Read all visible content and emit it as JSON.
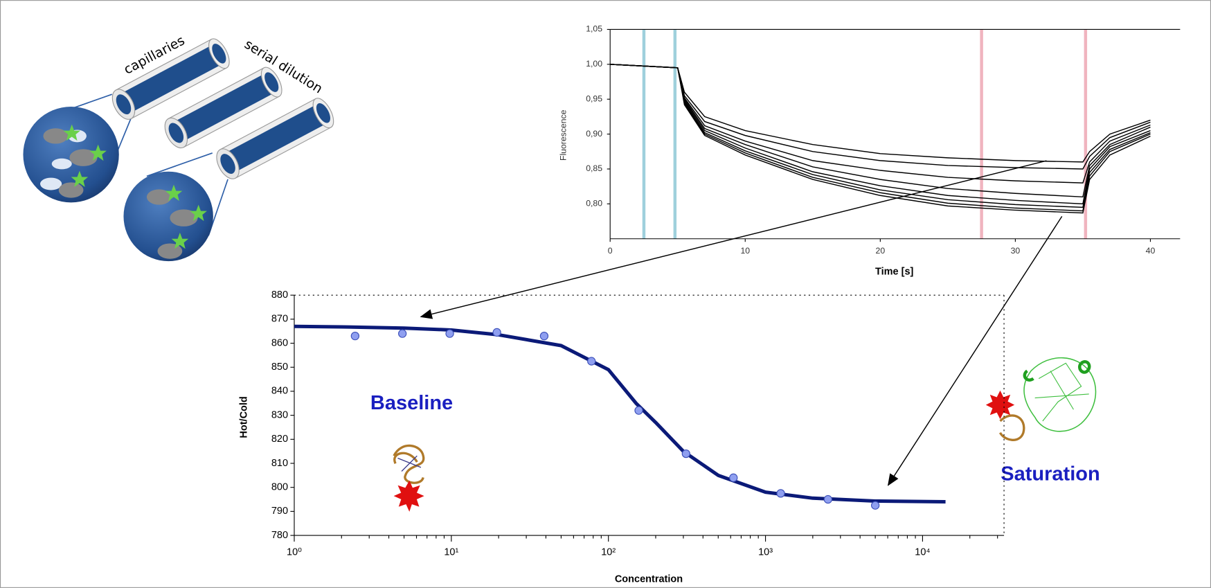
{
  "chart_data": [
    {
      "type": "line",
      "y_label": "Fluorescence",
      "x_label": "Time [s]",
      "x": [
        0,
        5,
        5.5,
        7,
        10,
        15,
        20,
        25,
        30,
        35,
        35.5,
        37,
        40
      ],
      "series": [
        {
          "color": "#000000",
          "values": [
            1.0,
            0.995,
            0.96,
            0.925,
            0.905,
            0.885,
            0.872,
            0.866,
            0.862,
            0.86,
            0.875,
            0.9,
            0.92
          ]
        },
        {
          "color": "#000000",
          "values": [
            1.0,
            0.995,
            0.955,
            0.918,
            0.898,
            0.875,
            0.862,
            0.855,
            0.852,
            0.85,
            0.868,
            0.895,
            0.917
          ]
        },
        {
          "color": "#000000",
          "values": [
            1.0,
            0.995,
            0.952,
            0.912,
            0.89,
            0.862,
            0.848,
            0.838,
            0.833,
            0.83,
            0.86,
            0.89,
            0.913
          ]
        },
        {
          "color": "#000000",
          "values": [
            1.0,
            0.995,
            0.95,
            0.908,
            0.885,
            0.853,
            0.835,
            0.822,
            0.815,
            0.81,
            0.855,
            0.885,
            0.91
          ]
        },
        {
          "color": "#000000",
          "values": [
            1.0,
            0.995,
            0.948,
            0.905,
            0.88,
            0.846,
            0.826,
            0.812,
            0.805,
            0.8,
            0.85,
            0.882,
            0.905
          ]
        },
        {
          "color": "#000000",
          "values": [
            1.0,
            0.995,
            0.946,
            0.902,
            0.876,
            0.842,
            0.82,
            0.806,
            0.799,
            0.795,
            0.845,
            0.878,
            0.902
          ]
        },
        {
          "color": "#000000",
          "values": [
            1.0,
            0.995,
            0.944,
            0.9,
            0.873,
            0.838,
            0.816,
            0.801,
            0.794,
            0.79,
            0.84,
            0.875,
            0.9
          ]
        },
        {
          "color": "#000000",
          "values": [
            1.0,
            0.995,
            0.942,
            0.898,
            0.87,
            0.835,
            0.812,
            0.797,
            0.791,
            0.787,
            0.835,
            0.87,
            0.897
          ]
        }
      ],
      "vlines": [
        {
          "value": 2.5,
          "color": "#9fd0dc"
        },
        {
          "value": 4.8,
          "color": "#9fd0dc"
        },
        {
          "value": 27.5,
          "color": "#f0b4bf"
        },
        {
          "value": 35.2,
          "color": "#f0b4bf"
        }
      ],
      "xlim": [
        0,
        42.2
      ],
      "ylim": [
        0.75,
        1.05
      ],
      "xticks": [
        0,
        10,
        20,
        30,
        40
      ],
      "yticks": [
        {
          "value": 0.8,
          "label": "0,80"
        },
        {
          "value": 0.85,
          "label": "0,85"
        },
        {
          "value": 0.9,
          "label": "0,90"
        },
        {
          "value": 0.95,
          "label": "0,95"
        },
        {
          "value": 1.0,
          "label": "1,00"
        },
        {
          "value": 1.05,
          "label": "1,05"
        }
      ]
    },
    {
      "type": "scatter",
      "xscale": "log",
      "y_label": "Hot/Cold",
      "x_label": "Concentration",
      "annotations": [
        "Baseline",
        "Saturation"
      ],
      "points": {
        "color": "#8f9ff0",
        "x": [
          2.44,
          4.88,
          9.77,
          19.5,
          39,
          78,
          156,
          312,
          625,
          1250,
          2500,
          5000
        ],
        "values": [
          863,
          864,
          864,
          864.5,
          863,
          852.5,
          832,
          814,
          804,
          797.5,
          795,
          792.5
        ]
      },
      "fit": {
        "color": "#0b1a78",
        "x": [
          1,
          2,
          5,
          10,
          20,
          50,
          100,
          150,
          200,
          300,
          500,
          1000,
          2000,
          5000,
          14000
        ],
        "values": [
          867,
          866.8,
          866.3,
          865.5,
          863.5,
          859,
          849,
          835,
          827,
          815,
          805,
          798,
          795.5,
          794.3,
          794
        ]
      },
      "xlim": [
        1,
        33000
      ],
      "ylim": [
        780,
        880
      ],
      "xticks": [
        {
          "value": 1,
          "label": "10⁰"
        },
        {
          "value": 10,
          "label": "10¹"
        },
        {
          "value": 100,
          "label": "10²"
        },
        {
          "value": 1000,
          "label": "10³"
        },
        {
          "value": 10000,
          "label": "10⁴"
        }
      ],
      "yticks": [
        780,
        790,
        800,
        810,
        820,
        830,
        840,
        850,
        860,
        870,
        880
      ]
    }
  ],
  "diagram": {
    "labels": [
      "capillaries",
      "serial dilution"
    ]
  }
}
